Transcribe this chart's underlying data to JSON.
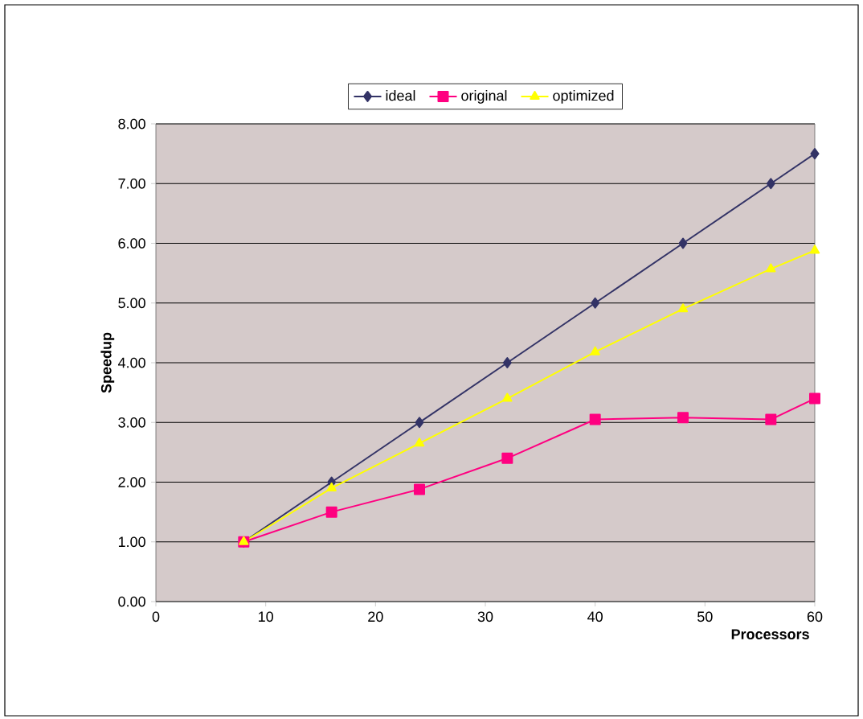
{
  "chart_data": {
    "type": "line",
    "xlabel": "Processors",
    "ylabel": "Speedup",
    "xlim": [
      0,
      60
    ],
    "xticks": [
      0,
      10,
      20,
      30,
      40,
      50,
      60
    ],
    "ylim": [
      0,
      8
    ],
    "yticks": [
      {
        "value": 0,
        "label": "0.00"
      },
      {
        "value": 1,
        "label": "1.00"
      },
      {
        "value": 2,
        "label": "2.00"
      },
      {
        "value": 3,
        "label": "3.00"
      },
      {
        "value": 4,
        "label": "4.00"
      },
      {
        "value": 5,
        "label": "5.00"
      },
      {
        "value": 6,
        "label": "6.00"
      },
      {
        "value": 7,
        "label": "7.00"
      },
      {
        "value": 8,
        "label": "8.00"
      }
    ],
    "x": [
      8,
      16,
      24,
      32,
      40,
      48,
      56,
      60
    ],
    "series": [
      {
        "name": "ideal",
        "color": "#333366",
        "marker": "diamond",
        "values": [
          1,
          2,
          3,
          4,
          5,
          6,
          7,
          7.5
        ]
      },
      {
        "name": "original",
        "color": "#ff0080",
        "marker": "square",
        "values": [
          1,
          1.5,
          1.88,
          2.4,
          3.05,
          3.08,
          3.05,
          3.4
        ]
      },
      {
        "name": "optimized",
        "color": "#ffff00",
        "marker": "triangle",
        "values": [
          1,
          1.9,
          2.65,
          3.4,
          4.18,
          4.9,
          5.57,
          5.88
        ]
      }
    ],
    "grid": "y",
    "legend": "top"
  }
}
